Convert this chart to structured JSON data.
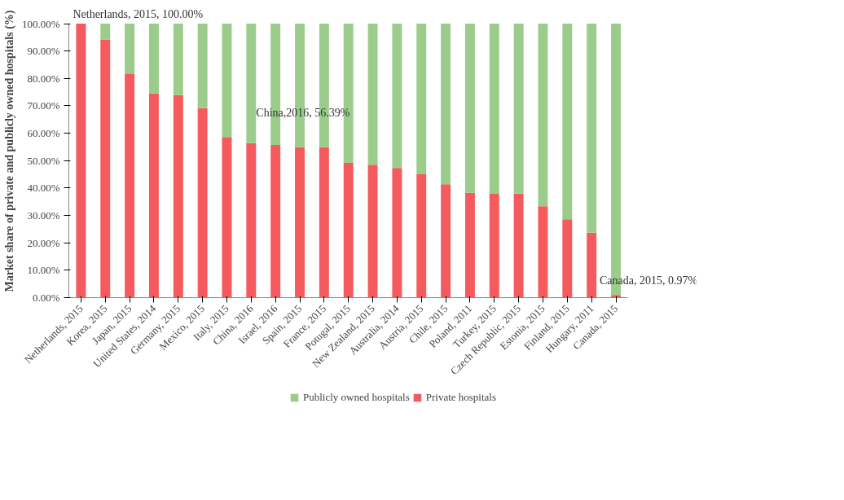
{
  "chart_data": {
    "type": "bar",
    "stacked": true,
    "ylabel": "Market share of private and publicly owned hospitals (%)",
    "categories": [
      "Netherlands, 2015",
      "Korea, 2015",
      "Japan, 2015",
      "United States, 2014",
      "Germany, 2015",
      "Mexico, 2015",
      "Italy, 2015",
      "China, 2016",
      "Israel, 2016",
      "Spain, 2015",
      "France, 2015",
      "Potugal, 2015",
      "New Zealand, 2015",
      "Australia, 2014",
      "Austria, 2015",
      "Chile, 2015",
      "Poland, 2011",
      "Turkey, 2015",
      "Czech Republic, 2015",
      "Estonia, 2015",
      "Finland, 2015",
      "Hungary, 2011",
      "Canada, 2015"
    ],
    "series": [
      {
        "name": "Private hospitals",
        "color": "#f55a5e",
        "values": [
          100,
          94.2,
          81.6,
          74.5,
          73.9,
          69.2,
          58.6,
          56.39,
          55.7,
          54.9,
          54.9,
          49.2,
          48.5,
          47.3,
          45.0,
          41.4,
          38.3,
          37.9,
          38.0,
          33.4,
          28.6,
          23.7,
          0.97
        ]
      },
      {
        "name": "Publicly owned hospitals",
        "color": "#9ccc8c",
        "values": [
          0,
          5.8,
          18.4,
          25.5,
          26.1,
          30.8,
          41.4,
          43.61,
          44.3,
          45.1,
          45.1,
          50.8,
          51.5,
          52.7,
          55.0,
          58.6,
          61.7,
          62.1,
          62.0,
          66.6,
          71.4,
          76.3,
          99.03
        ]
      }
    ],
    "ylim": [
      0,
      100
    ],
    "yticks": [
      {
        "value": 0,
        "label": "0.00%"
      },
      {
        "value": 10,
        "label": "10.00%"
      },
      {
        "value": 20,
        "label": "20.00%"
      },
      {
        "value": 30,
        "label": "30.00%"
      },
      {
        "value": 40,
        "label": "40.00%"
      },
      {
        "value": 50,
        "label": "50.00%"
      },
      {
        "value": 60,
        "label": "60.00%"
      },
      {
        "value": 70,
        "label": "70.00%"
      },
      {
        "value": 80,
        "label": "80.00%"
      },
      {
        "value": 90,
        "label": "90.00%"
      },
      {
        "value": 100,
        "label": "100.00%"
      }
    ],
    "annotations": [
      {
        "text": "Netherlands, 2015, 100.00%",
        "x": "Netherlands, 2015",
        "y": 100
      },
      {
        "text": "China,2016, 56.39%",
        "x": "China, 2016",
        "y": 56.39
      },
      {
        "text": "Canada, 2015, 0.97%",
        "x": "Canada, 2015",
        "y": 0.97
      }
    ],
    "grid": false,
    "legend": "bottom"
  }
}
